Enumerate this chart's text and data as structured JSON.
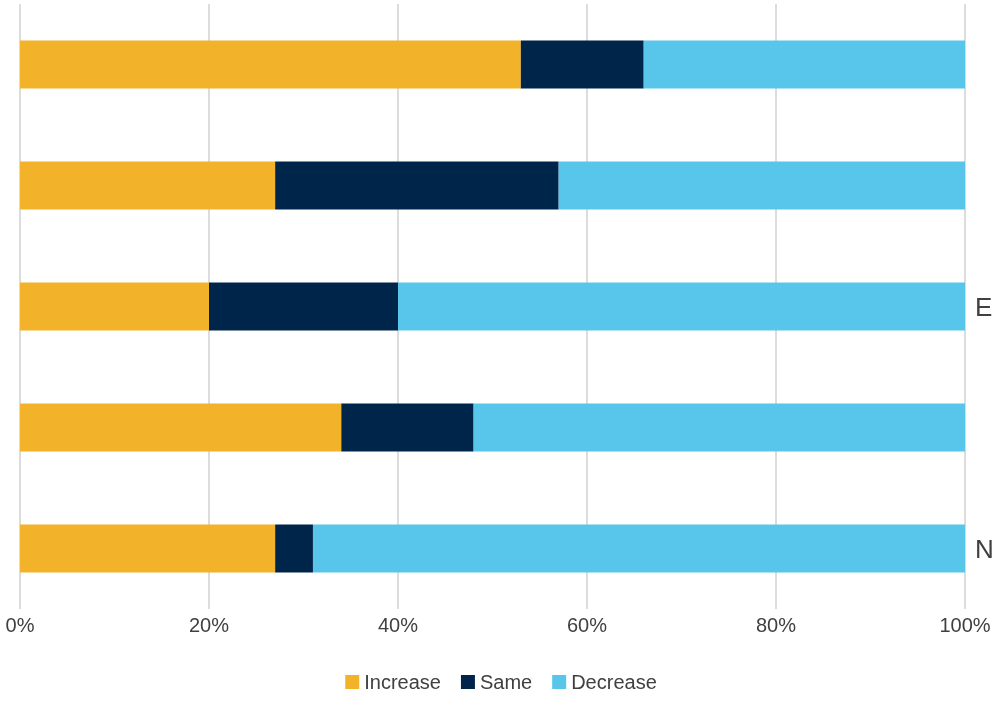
{
  "chart_data": {
    "type": "bar",
    "orientation": "horizontal",
    "stacked": true,
    "categories": [
      null,
      null,
      "E",
      null,
      "N"
    ],
    "series": [
      {
        "name": "Increase",
        "color": "#f2b32b",
        "values": [
          53,
          27,
          20,
          34,
          27
        ]
      },
      {
        "name": "Same",
        "color": "#00254b",
        "values": [
          13,
          30,
          20,
          14,
          4
        ]
      },
      {
        "name": "Decrease",
        "color": "#58c5ea",
        "values": [
          34,
          43,
          60,
          52,
          69
        ]
      }
    ],
    "xlim": [
      0,
      100
    ],
    "xticks": [
      {
        "value": 0,
        "label": "0%"
      },
      {
        "value": 20,
        "label": "20%"
      },
      {
        "value": 40,
        "label": "40%"
      },
      {
        "value": 60,
        "label": "60%"
      },
      {
        "value": 80,
        "label": "80%"
      },
      {
        "value": 100,
        "label": "100%"
      }
    ],
    "grid": "x",
    "legend": "bottom"
  }
}
